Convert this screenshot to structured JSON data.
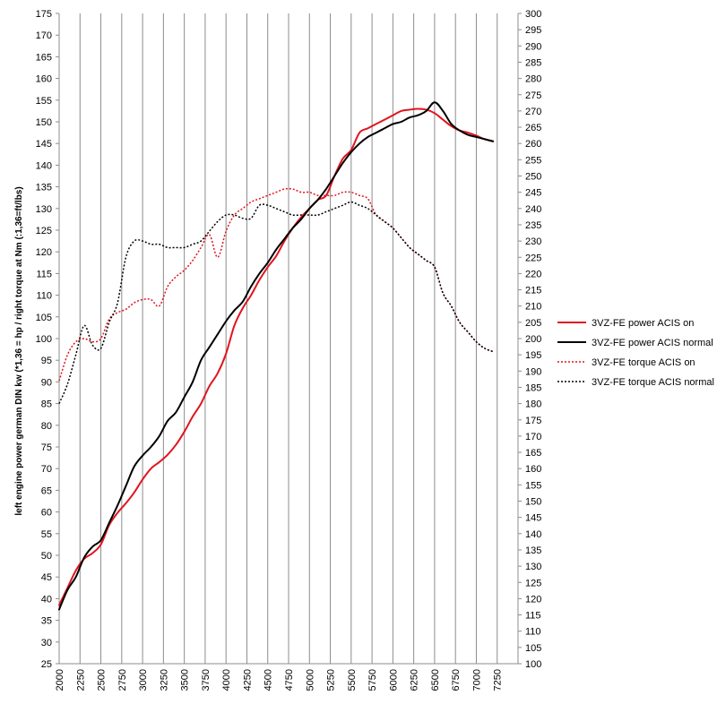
{
  "chart_data": {
    "type": "line",
    "ylabel": "left engine power  german DIN kw (*1,36 = hp / right torque at Nm (:1,36=ft/lbs)",
    "x_ticks": [
      "2000",
      "2250",
      "2500",
      "2750",
      "3000",
      "3250",
      "3500",
      "3750",
      "4000",
      "4250",
      "4500",
      "4750",
      "5000",
      "5250",
      "5500",
      "5750",
      "6000",
      "6250",
      "6500",
      "6750",
      "7000",
      "7250"
    ],
    "xlim": [
      2000,
      7500
    ],
    "ylim_left": [
      25,
      175
    ],
    "ylim_right": [
      100,
      300
    ],
    "y_left_ticks": [
      "25",
      "30",
      "35",
      "40",
      "45",
      "50",
      "55",
      "60",
      "65",
      "70",
      "75",
      "80",
      "85",
      "90",
      "95",
      "100",
      "105",
      "110",
      "115",
      "120",
      "125",
      "130",
      "135",
      "140",
      "145",
      "150",
      "155",
      "160",
      "165",
      "170",
      "175"
    ],
    "y_right_ticks": [
      "100",
      "105",
      "110",
      "115",
      "120",
      "125",
      "130",
      "135",
      "140",
      "145",
      "150",
      "155",
      "160",
      "165",
      "170",
      "175",
      "180",
      "185",
      "190",
      "195",
      "200",
      "205",
      "210",
      "215",
      "220",
      "225",
      "230",
      "235",
      "240",
      "245",
      "250",
      "255",
      "260",
      "265",
      "270",
      "275",
      "280",
      "285",
      "290",
      "295",
      "300"
    ],
    "grid": "vertical",
    "legend_position": "right",
    "series": [
      {
        "name": "3VZ-FE power ACIS on",
        "axis": "left",
        "color": "#e0141e",
        "dash": "solid",
        "x": [
          2000,
          2100,
          2200,
          2300,
          2400,
          2500,
          2600,
          2700,
          2800,
          2900,
          3000,
          3100,
          3200,
          3300,
          3400,
          3500,
          3600,
          3700,
          3800,
          3900,
          4000,
          4100,
          4200,
          4300,
          4400,
          4500,
          4600,
          4700,
          4800,
          4900,
          5000,
          5100,
          5200,
          5300,
          5400,
          5500,
          5600,
          5700,
          5800,
          5900,
          6000,
          6100,
          6200,
          6300,
          6400,
          6500,
          6600,
          6700,
          6800,
          6900,
          7000,
          7100,
          7200
        ],
        "values": [
          38.5,
          42.5,
          46.5,
          49.2,
          50.5,
          52.5,
          57.0,
          59.8,
          62.0,
          64.5,
          67.5,
          70.0,
          71.5,
          73.2,
          75.5,
          78.5,
          82.0,
          85.0,
          89.0,
          92.0,
          96.5,
          103.0,
          107.0,
          110.0,
          113.5,
          116.5,
          119.0,
          122.5,
          125.5,
          128.0,
          130.0,
          132.0,
          133.0,
          137.5,
          141.5,
          143.5,
          147.5,
          148.5,
          149.5,
          150.5,
          151.5,
          152.5,
          152.8,
          153.0,
          152.8,
          152.0,
          150.5,
          149.0,
          148.0,
          147.5,
          146.8,
          146.0,
          145.5
        ]
      },
      {
        "name": "3VZ-FE power ACIS normal",
        "axis": "left",
        "color": "#000000",
        "dash": "solid",
        "x": [
          2000,
          2100,
          2200,
          2300,
          2400,
          2500,
          2600,
          2700,
          2800,
          2900,
          3000,
          3100,
          3200,
          3300,
          3400,
          3500,
          3600,
          3700,
          3800,
          3900,
          4000,
          4100,
          4200,
          4300,
          4400,
          4500,
          4600,
          4700,
          4800,
          4900,
          5000,
          5100,
          5200,
          5300,
          5400,
          5500,
          5600,
          5700,
          5800,
          5900,
          6000,
          6100,
          6200,
          6300,
          6400,
          6500,
          6600,
          6700,
          6800,
          6900,
          7000,
          7100,
          7200
        ],
        "values": [
          37.5,
          42.0,
          45.0,
          49.5,
          52.0,
          53.5,
          57.5,
          61.5,
          66.0,
          70.5,
          73.0,
          75.0,
          77.5,
          81.0,
          83.0,
          86.5,
          90.0,
          95.0,
          98.0,
          101.0,
          104.0,
          106.5,
          108.5,
          112.0,
          115.0,
          117.5,
          120.5,
          123.0,
          125.5,
          127.5,
          130.0,
          132.0,
          134.5,
          137.5,
          140.5,
          143.0,
          145.0,
          146.5,
          147.5,
          148.5,
          149.5,
          150.0,
          151.0,
          151.5,
          152.5,
          154.5,
          152.5,
          149.5,
          148.0,
          147.0,
          146.5,
          146.0,
          145.5
        ]
      },
      {
        "name": "3VZ-FE torque ACIS on",
        "axis": "right",
        "color": "#e0141e",
        "dash": "dotted",
        "x": [
          2000,
          2100,
          2200,
          2300,
          2400,
          2500,
          2600,
          2700,
          2800,
          2900,
          3000,
          3100,
          3200,
          3300,
          3400,
          3500,
          3600,
          3700,
          3800,
          3900,
          4000,
          4100,
          4200,
          4300,
          4400,
          4500,
          4600,
          4700,
          4800,
          4900,
          5000,
          5100,
          5200,
          5300,
          5400,
          5500,
          5600,
          5700,
          5800,
          5900,
          6000,
          6100,
          6200,
          6300,
          6400,
          6500,
          6600,
          6700,
          6800,
          6900,
          7000,
          7100,
          7200
        ],
        "values": [
          187,
          195,
          199,
          200,
          199,
          200,
          206,
          208,
          209,
          211,
          212,
          212,
          210,
          216,
          219,
          221,
          224,
          228,
          232,
          225,
          233,
          238,
          240,
          242,
          243,
          244,
          245,
          246,
          246,
          245,
          245,
          244,
          244,
          244,
          245,
          245,
          244,
          243,
          238,
          236,
          234,
          231,
          228,
          226,
          224,
          222,
          214,
          210,
          205,
          202,
          199,
          197,
          196
        ]
      },
      {
        "name": "3VZ-FE torque ACIS normal",
        "axis": "right",
        "color": "#000000",
        "dash": "dotted",
        "x": [
          2000,
          2100,
          2200,
          2300,
          2400,
          2500,
          2600,
          2700,
          2800,
          2900,
          3000,
          3100,
          3200,
          3300,
          3400,
          3500,
          3600,
          3700,
          3800,
          3900,
          4000,
          4100,
          4200,
          4300,
          4400,
          4500,
          4600,
          4700,
          4800,
          4900,
          5000,
          5100,
          5200,
          5300,
          5400,
          5500,
          5600,
          5700,
          5800,
          5900,
          6000,
          6100,
          6200,
          6300,
          6400,
          6500,
          6600,
          6700,
          6800,
          6900,
          7000,
          7100,
          7200
        ],
        "values": [
          180,
          186,
          195,
          204,
          198,
          197,
          205,
          211,
          225,
          230,
          230,
          229,
          229,
          228,
          228,
          228,
          229,
          230,
          233,
          236,
          238,
          238,
          237,
          237,
          241,
          241,
          240,
          239,
          238,
          238,
          238,
          238,
          239,
          240,
          241,
          242,
          241,
          240,
          238,
          236,
          234,
          231,
          228,
          226,
          224,
          222,
          214,
          210,
          205,
          202,
          199,
          197,
          196
        ]
      }
    ]
  }
}
